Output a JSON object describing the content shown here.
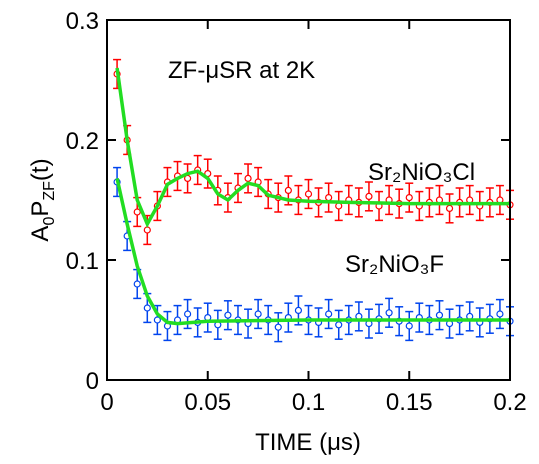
{
  "chart_data": {
    "type": "scatter",
    "title": "ZF-μSR at 2K",
    "xlabel": "TIME (μs)",
    "ylabel_parts": [
      "A",
      "0",
      "P",
      "ZF",
      "(t)"
    ],
    "x": [
      0.005,
      0.01,
      0.015,
      0.02,
      0.025,
      0.03,
      0.035,
      0.04,
      0.045,
      0.05,
      0.055,
      0.06,
      0.065,
      0.07,
      0.075,
      0.08,
      0.085,
      0.09,
      0.095,
      0.1,
      0.105,
      0.11,
      0.115,
      0.12,
      0.125,
      0.13,
      0.135,
      0.14,
      0.145,
      0.15,
      0.155,
      0.16,
      0.165,
      0.17,
      0.175,
      0.18,
      0.185,
      0.19,
      0.195,
      0.2
    ],
    "series": [
      {
        "name": "Sr₂NiO₃Cl",
        "color": "#ff0000",
        "values": [
          0.255,
          0.2,
          0.14,
          0.125,
          0.145,
          0.165,
          0.17,
          0.168,
          0.175,
          0.172,
          0.158,
          0.152,
          0.16,
          0.168,
          0.165,
          0.155,
          0.152,
          0.158,
          0.15,
          0.155,
          0.148,
          0.152,
          0.145,
          0.15,
          0.148,
          0.153,
          0.145,
          0.15,
          0.147,
          0.152,
          0.145,
          0.148,
          0.15,
          0.143,
          0.148,
          0.15,
          0.145,
          0.148,
          0.15,
          0.146
        ],
        "errors": [
          0.012,
          0.012,
          0.012,
          0.012,
          0.012,
          0.012,
          0.012,
          0.012,
          0.012,
          0.012,
          0.012,
          0.012,
          0.012,
          0.012,
          0.012,
          0.012,
          0.012,
          0.012,
          0.012,
          0.012,
          0.012,
          0.012,
          0.012,
          0.012,
          0.012,
          0.012,
          0.012,
          0.012,
          0.012,
          0.012,
          0.012,
          0.012,
          0.012,
          0.012,
          0.012,
          0.012,
          0.012,
          0.012,
          0.012,
          0.012
        ]
      },
      {
        "name": "Sr₂NiO₃F",
        "color": "#0044ee",
        "values": [
          0.165,
          0.12,
          0.08,
          0.06,
          0.05,
          0.045,
          0.05,
          0.055,
          0.048,
          0.052,
          0.046,
          0.054,
          0.05,
          0.047,
          0.055,
          0.05,
          0.044,
          0.052,
          0.058,
          0.05,
          0.048,
          0.055,
          0.046,
          0.05,
          0.053,
          0.047,
          0.051,
          0.056,
          0.049,
          0.045,
          0.052,
          0.05,
          0.054,
          0.047,
          0.05,
          0.053,
          0.048,
          0.051,
          0.055,
          0.049
        ],
        "errors": [
          0.012,
          0.012,
          0.012,
          0.012,
          0.012,
          0.012,
          0.012,
          0.012,
          0.012,
          0.012,
          0.012,
          0.012,
          0.012,
          0.012,
          0.012,
          0.012,
          0.012,
          0.012,
          0.012,
          0.012,
          0.012,
          0.012,
          0.012,
          0.012,
          0.012,
          0.012,
          0.012,
          0.012,
          0.012,
          0.012,
          0.012,
          0.012,
          0.012,
          0.012,
          0.012,
          0.012,
          0.012,
          0.012,
          0.012,
          0.012
        ]
      }
    ],
    "fits": [
      {
        "color": "#22dd22",
        "x": [
          0.005,
          0.01,
          0.015,
          0.02,
          0.025,
          0.03,
          0.035,
          0.04,
          0.045,
          0.05,
          0.055,
          0.06,
          0.065,
          0.07,
          0.075,
          0.08,
          0.09,
          0.1,
          0.12,
          0.15,
          0.2
        ],
        "values": [
          0.26,
          0.2,
          0.15,
          0.13,
          0.145,
          0.163,
          0.168,
          0.172,
          0.174,
          0.168,
          0.155,
          0.15,
          0.158,
          0.164,
          0.162,
          0.154,
          0.15,
          0.149,
          0.148,
          0.147,
          0.147
        ]
      },
      {
        "color": "#22dd22",
        "x": [
          0.005,
          0.01,
          0.015,
          0.02,
          0.025,
          0.03,
          0.035,
          0.05,
          0.1,
          0.2
        ],
        "values": [
          0.168,
          0.13,
          0.095,
          0.07,
          0.055,
          0.048,
          0.047,
          0.049,
          0.05,
          0.05
        ]
      }
    ],
    "xlim": [
      0,
      0.2
    ],
    "xticks": [
      0,
      0.05,
      0.1,
      0.15,
      0.2
    ],
    "ylim": [
      0,
      0.3
    ],
    "yticks": [
      0,
      0.1,
      0.2,
      0.3
    ]
  }
}
